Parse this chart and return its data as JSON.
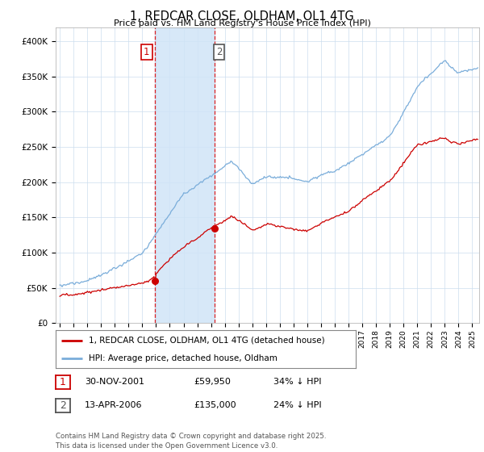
{
  "title": "1, REDCAR CLOSE, OLDHAM, OL1 4TG",
  "subtitle": "Price paid vs. HM Land Registry's House Price Index (HPI)",
  "ylim": [
    0,
    420000
  ],
  "xlim_start": 1994.7,
  "xlim_end": 2025.5,
  "sale1_date": 2001.92,
  "sale1_price": 59950,
  "sale2_date": 2006.28,
  "sale2_price": 135000,
  "shade_color": "#d0e4f7",
  "vline_color": "#dd0000",
  "hpi_color": "#7aadda",
  "price_color": "#cc0000",
  "marker_color": "#cc0000",
  "legend_label_price": "1, REDCAR CLOSE, OLDHAM, OL1 4TG (detached house)",
  "legend_label_hpi": "HPI: Average price, detached house, Oldham",
  "table_entries": [
    {
      "num": "1",
      "date": "30-NOV-2001",
      "price": "£59,950",
      "hpi": "34% ↓ HPI"
    },
    {
      "num": "2",
      "date": "13-APR-2006",
      "price": "£135,000",
      "hpi": "24% ↓ HPI"
    }
  ],
  "footer": "Contains HM Land Registry data © Crown copyright and database right 2025.\nThis data is licensed under the Open Government Licence v3.0.",
  "background_color": "#ffffff",
  "plot_bg_color": "#ffffff",
  "grid_color": "#ccddee",
  "num1_border_color": "#cc0000",
  "num2_border_color": "#555555"
}
